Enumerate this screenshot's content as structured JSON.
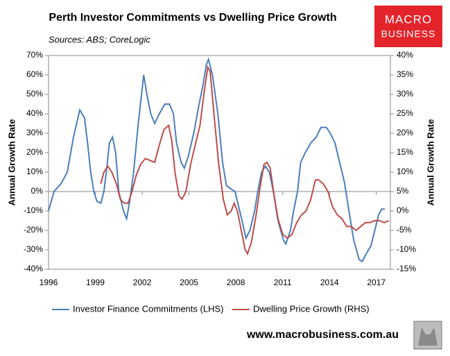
{
  "chart_data": {
    "type": "line",
    "title": "Perth Investor Commitments vs Dwelling Price Growth",
    "subtitle": "Sources: ABS; CoreLogic",
    "ylabel": "Annual Growth Rate",
    "y2label": "Annual Growth Rate",
    "logo": [
      "MACRO",
      "BUSINESS"
    ],
    "footer": "www.macrobusiness.com.au",
    "xlim": [
      1996,
      2017.9
    ],
    "xticks": [
      1996,
      1999,
      2002,
      2005,
      2008,
      2011,
      2014,
      2017
    ],
    "ylim": [
      -40,
      70
    ],
    "yticks": [
      {
        "value": -40,
        "label": "-40%"
      },
      {
        "value": -30,
        "label": "-30%"
      },
      {
        "value": -20,
        "label": "-20%"
      },
      {
        "value": -10,
        "label": "-10%"
      },
      {
        "value": 0,
        "label": "0%"
      },
      {
        "value": 10,
        "label": "10%"
      },
      {
        "value": 20,
        "label": "20%"
      },
      {
        "value": 30,
        "label": "30%"
      },
      {
        "value": 40,
        "label": "40%"
      },
      {
        "value": 50,
        "label": "50%"
      },
      {
        "value": 60,
        "label": "60%"
      },
      {
        "value": 70,
        "label": "70%"
      }
    ],
    "y2lim": [
      -15,
      40
    ],
    "y2ticks": [
      {
        "value": -15,
        "label": "-15%"
      },
      {
        "value": -10,
        "label": "-10%"
      },
      {
        "value": -5,
        "label": "-5%"
      },
      {
        "value": 0,
        "label": "0%"
      },
      {
        "value": 5,
        "label": "5%"
      },
      {
        "value": 10,
        "label": "10%"
      },
      {
        "value": 15,
        "label": "15%"
      },
      {
        "value": 20,
        "label": "20%"
      },
      {
        "value": 25,
        "label": "25%"
      },
      {
        "value": 30,
        "label": "30%"
      },
      {
        "value": 35,
        "label": "35%"
      },
      {
        "value": 40,
        "label": "40%"
      }
    ],
    "grid": false,
    "series": [
      {
        "name": "Investor Finance Commitments (LHS)",
        "color": "#4a7ebb",
        "x": [
          1996.0,
          1996.35,
          1996.8,
          1997.2,
          1997.6,
          1998.0,
          1998.3,
          1998.5,
          1998.7,
          1998.9,
          1999.1,
          1999.35,
          1999.55,
          1999.7,
          1999.9,
          2000.1,
          2000.3,
          2000.5,
          2000.8,
          2001.0,
          2001.2,
          2001.45,
          2001.75,
          2002.1,
          2002.3,
          2002.55,
          2002.8,
          2003.1,
          2003.45,
          2003.75,
          2004.0,
          2004.2,
          2004.5,
          2004.7,
          2004.95,
          2005.3,
          2005.65,
          2005.9,
          2006.1,
          2006.25,
          2006.5,
          2006.85,
          2007.15,
          2007.4,
          2007.75,
          2007.95,
          2008.1,
          2008.4,
          2008.65,
          2008.9,
          2009.2,
          2009.4,
          2009.65,
          2009.9,
          2010.15,
          2010.4,
          2010.7,
          2011.05,
          2011.2,
          2011.5,
          2011.7,
          2011.95,
          2012.15,
          2012.45,
          2012.8,
          2013.15,
          2013.45,
          2013.8,
          2014.05,
          2014.35,
          2014.65,
          2014.95,
          2015.25,
          2015.55,
          2015.9,
          2016.1,
          2016.35,
          2016.65,
          2016.9,
          2017.15,
          2017.35,
          2017.55
        ],
        "values": [
          -10,
          0,
          4,
          10,
          28,
          42,
          38,
          25,
          10,
          0,
          -5,
          -6,
          0,
          10,
          25,
          28,
          20,
          0,
          -10,
          -14,
          -5,
          10,
          35,
          60,
          50,
          40,
          35,
          40,
          45,
          45,
          40,
          25,
          15,
          12,
          18,
          30,
          45,
          55,
          65,
          68,
          60,
          40,
          15,
          3,
          1,
          0,
          -5,
          -15,
          -24,
          -20,
          -10,
          0,
          10,
          13,
          10,
          0,
          -15,
          -25,
          -27,
          -20,
          -10,
          0,
          15,
          20,
          25,
          28,
          33,
          33,
          30,
          25,
          15,
          5,
          -10,
          -25,
          -35,
          -36,
          -32,
          -28,
          -20,
          -12,
          -9,
          -9
        ]
      },
      {
        "name": "Dwelling Price Growth (RHS)",
        "color": "#be4b48",
        "axis": "y2",
        "x": [
          1999.35,
          1999.55,
          1999.8,
          2000.05,
          2000.35,
          2000.6,
          2000.85,
          2001.1,
          2001.35,
          2001.6,
          2001.9,
          2002.2,
          2002.5,
          2002.8,
          2003.1,
          2003.4,
          2003.7,
          2003.9,
          2004.1,
          2004.35,
          2004.55,
          2004.8,
          2005.1,
          2005.4,
          2005.7,
          2005.95,
          2006.2,
          2006.35,
          2006.6,
          2006.9,
          2007.2,
          2007.45,
          2007.7,
          2007.9,
          2008.1,
          2008.35,
          2008.6,
          2008.75,
          2009.0,
          2009.3,
          2009.55,
          2009.8,
          2010.0,
          2010.2,
          2010.45,
          2010.7,
          2011.0,
          2011.3,
          2011.6,
          2011.9,
          2012.2,
          2012.5,
          2012.8,
          2013.1,
          2013.3,
          2013.6,
          2013.9,
          2014.2,
          2014.5,
          2014.8,
          2015.1,
          2015.4,
          2015.7,
          2016.0,
          2016.3,
          2016.6,
          2016.9,
          2017.2,
          2017.5,
          2017.8
        ],
        "values": [
          7,
          10,
          11.5,
          10,
          7,
          3,
          2,
          2,
          5,
          9,
          12,
          13.5,
          13,
          12.5,
          17,
          21,
          22,
          18,
          10,
          4,
          3,
          5,
          12,
          17,
          22,
          30,
          37,
          36,
          25,
          12,
          3,
          -1,
          0,
          2,
          0,
          -5,
          -10,
          -11,
          -8,
          -1,
          6,
          12,
          12.5,
          11,
          4,
          -2,
          -6,
          -7,
          -6,
          -3,
          -1,
          0,
          3,
          8,
          8,
          7,
          5,
          1,
          -1,
          -2,
          -4,
          -4,
          -5,
          -4,
          -3,
          -3,
          -2.5,
          -2.5,
          -3,
          -2.5
        ]
      }
    ]
  }
}
